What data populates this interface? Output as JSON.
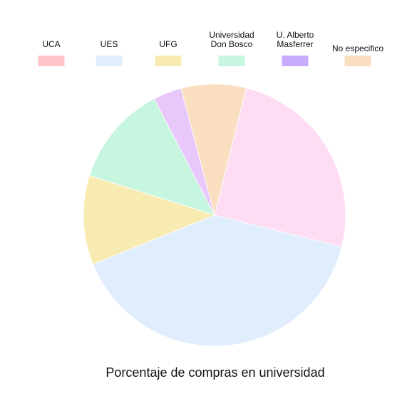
{
  "chart_data": {
    "type": "pie",
    "title": "Porcentaje de compras en universidad",
    "legend_position": "top",
    "categories": [
      "UCA",
      "UES",
      "UFG",
      "Universidad Don Bosco",
      "U. Alberto Masferrer",
      "No especifico"
    ],
    "legend_labels": [
      [
        "UCA"
      ],
      [
        "UES"
      ],
      [
        "UFG"
      ],
      [
        "Universidad",
        "Don Bosco"
      ],
      [
        "U. Alberto",
        "Masferrer"
      ],
      [
        "No especifico"
      ]
    ],
    "colors": [
      "#FFC4C8",
      "#E0EDFD",
      "#F8EBB2",
      "#C6F6DF",
      "#C8ABFC",
      "#F9DFC0"
    ],
    "slices": [
      {
        "name": "Pink slice (unlabeled)",
        "value": 25.0,
        "color": "#FEDDF4"
      },
      {
        "name": "UES",
        "value": 40.0,
        "color": "#E0EDFD"
      },
      {
        "name": "UFG",
        "value": 11.0,
        "color": "#F8EBB2"
      },
      {
        "name": "Universidad Don Bosco",
        "value": 12.5,
        "color": "#C6F6DF"
      },
      {
        "name": "U. Alberto Masferrer",
        "value": 3.5,
        "color": "#E8C7FB"
      },
      {
        "name": "No especifico",
        "value": 8.0,
        "color": "#F9DFC0"
      }
    ],
    "start_angle_deg": 14
  }
}
